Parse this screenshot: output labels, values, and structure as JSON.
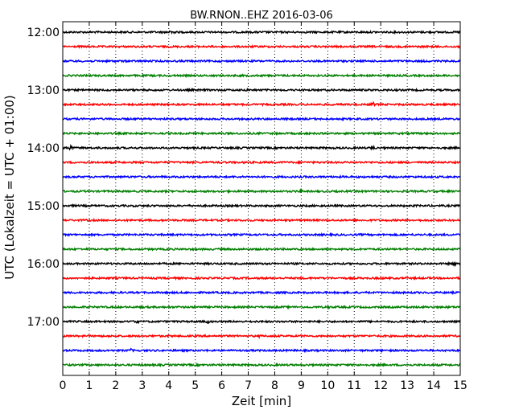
{
  "chart_data": {
    "type": "line",
    "title": "BW.RNON..EHZ 2016-03-06",
    "xlabel": "Zeit  [min]",
    "ylabel": "UTC (Lokalzeit = UTC + 01:00)",
    "xlim": [
      0,
      15
    ],
    "x_ticks": [
      "0",
      "1",
      "2",
      "3",
      "4",
      "5",
      "6",
      "7",
      "8",
      "9",
      "10",
      "11",
      "12",
      "13",
      "14",
      "15"
    ],
    "grid": "vertical dotted",
    "trace_interval_minutes": 15,
    "colors": [
      "#000000",
      "#ff0000",
      "#0000ff",
      "#008000"
    ],
    "traces": [
      {
        "start": "12:00",
        "color": "#000000",
        "events": [
          {
            "x": 4.1,
            "amp": 0.35
          }
        ]
      },
      {
        "start": "12:15",
        "color": "#ff0000",
        "events": []
      },
      {
        "start": "12:30",
        "color": "#0000ff",
        "events": []
      },
      {
        "start": "12:45",
        "color": "#008000",
        "events": []
      },
      {
        "start": "13:00",
        "color": "#000000",
        "events": [
          {
            "x": 6.9,
            "amp": 0.3
          }
        ]
      },
      {
        "start": "13:15",
        "color": "#ff0000",
        "events": [
          {
            "x": 11.7,
            "amp": 0.55
          }
        ]
      },
      {
        "start": "13:30",
        "color": "#0000ff",
        "events": []
      },
      {
        "start": "13:45",
        "color": "#008000",
        "events": []
      },
      {
        "start": "14:00",
        "color": "#000000",
        "events": [
          {
            "x": 0.3,
            "amp": 0.5
          },
          {
            "x": 11.7,
            "amp": 0.4
          }
        ]
      },
      {
        "start": "14:15",
        "color": "#ff0000",
        "events": []
      },
      {
        "start": "14:30",
        "color": "#0000ff",
        "events": []
      },
      {
        "start": "14:45",
        "color": "#008000",
        "events": [
          {
            "x": 9.0,
            "amp": 0.35
          }
        ]
      },
      {
        "start": "15:00",
        "color": "#000000",
        "events": []
      },
      {
        "start": "15:15",
        "color": "#ff0000",
        "events": []
      },
      {
        "start": "15:30",
        "color": "#0000ff",
        "events": []
      },
      {
        "start": "15:45",
        "color": "#008000",
        "events": []
      },
      {
        "start": "16:00",
        "color": "#000000",
        "events": [
          {
            "x": 14.8,
            "amp": 0.35
          }
        ]
      },
      {
        "start": "16:15",
        "color": "#ff0000",
        "events": []
      },
      {
        "start": "16:30",
        "color": "#0000ff",
        "events": []
      },
      {
        "start": "16:45",
        "color": "#008000",
        "events": [
          {
            "x": 10.0,
            "amp": 0.25
          }
        ]
      },
      {
        "start": "17:00",
        "color": "#000000",
        "events": [
          {
            "x": 2.8,
            "amp": 0.3
          },
          {
            "x": 5.5,
            "amp": 0.25
          }
        ]
      },
      {
        "start": "17:15",
        "color": "#ff0000",
        "events": [
          {
            "x": 7.5,
            "amp": 0.25
          }
        ]
      },
      {
        "start": "17:30",
        "color": "#0000ff",
        "events": [
          {
            "x": 2.6,
            "amp": 0.3
          }
        ]
      },
      {
        "start": "17:45",
        "color": "#008000",
        "events": []
      }
    ],
    "y_tick_labels": [
      "12:00",
      "13:00",
      "14:00",
      "15:00",
      "16:00",
      "17:00"
    ]
  }
}
